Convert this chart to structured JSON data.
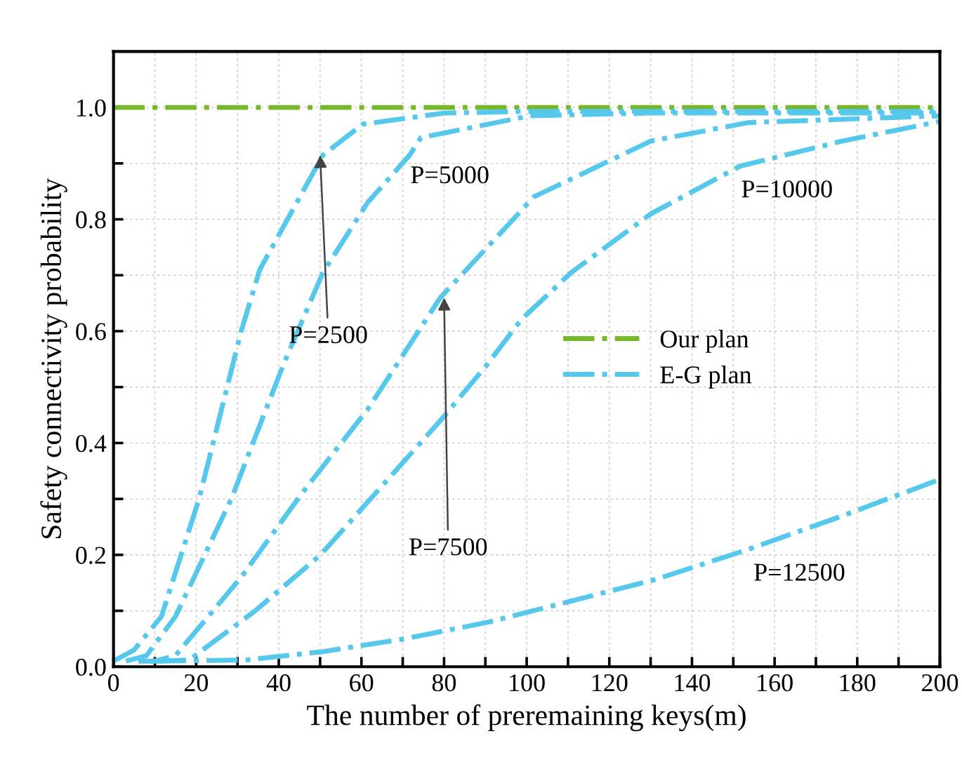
{
  "chart_data": {
    "type": "line",
    "xlabel": "The number of preremaining keys(m)",
    "ylabel": "Safety connectivity probability",
    "xlim": [
      0,
      200
    ],
    "xticks": [
      0,
      {
        "value": 10,
        "label": null
      },
      20,
      {
        "value": 30,
        "label": null
      },
      40,
      {
        "value": 50,
        "label": null
      },
      60,
      {
        "value": 70,
        "label": null
      },
      80,
      {
        "value": 90,
        "label": null
      },
      100,
      {
        "value": 110,
        "label": null
      },
      120,
      {
        "value": 130,
        "label": null
      },
      140,
      {
        "value": 150,
        "label": null
      },
      160,
      {
        "value": 170,
        "label": null
      },
      180,
      {
        "value": 190,
        "label": null
      },
      200
    ],
    "ylim": [
      0,
      1.1
    ],
    "yticks": [
      {
        "value": 0,
        "label": "0.0"
      },
      {
        "value": 0.1,
        "label": null
      },
      {
        "value": 0.2,
        "label": "0.2"
      },
      {
        "value": 0.3,
        "label": null
      },
      {
        "value": 0.4,
        "label": "0.4"
      },
      {
        "value": 0.5,
        "label": null
      },
      {
        "value": 0.6,
        "label": "0.6"
      },
      {
        "value": 0.7,
        "label": null
      },
      {
        "value": 0.8,
        "label": "0.8"
      },
      {
        "value": 0.9,
        "label": null
      },
      {
        "value": 1.0,
        "label": "1.0"
      }
    ],
    "grid": true,
    "legend": "right",
    "line_style": "dashdot",
    "marker": "none",
    "series": [
      {
        "name": "Our plan",
        "color": "#77b82a",
        "x": [
          0,
          200
        ],
        "values": [
          1.0,
          1.0
        ]
      },
      {
        "name": "E-G plan",
        "color": "#55c8ec",
        "x": [
          0,
          5,
          11.6,
          20.7,
          30.9,
          35.4,
          50.7,
          60.3,
          80,
          100,
          200
        ],
        "values": [
          0.01,
          0.03,
          0.09,
          0.3,
          0.6,
          0.71,
          0.915,
          0.97,
          0.99,
          0.993,
          0.993
        ]
      },
      {
        "color": "#55c8ec",
        "x": [
          3,
          8,
          15,
          28.5,
          41.1,
          50.7,
          61.5,
          71.7,
          74.4,
          100.7,
          130,
          200
        ],
        "values": [
          0.01,
          0.02,
          0.09,
          0.3,
          0.54,
          0.705,
          0.83,
          0.915,
          0.946,
          0.985,
          0.99,
          0.99
        ]
      },
      {
        "color": "#55c8ec",
        "x": [
          6,
          10,
          15,
          30.9,
          45.6,
          61.5,
          79.1,
          95.5,
          101.7,
          130.1,
          153.7,
          200
        ],
        "values": [
          0.01,
          0.01,
          0.02,
          0.16,
          0.31,
          0.46,
          0.66,
          0.79,
          0.84,
          0.94,
          0.973,
          0.985
        ]
      },
      {
        "color": "#55c8ec",
        "x": [
          10,
          18.3,
          34.3,
          50.1,
          79.1,
          90.4,
          98.6,
          110.8,
          130.1,
          151.6,
          176.5,
          200
        ],
        "values": [
          0.01,
          0.012,
          0.1,
          0.2,
          0.44,
          0.54,
          0.62,
          0.705,
          0.81,
          0.895,
          0.94,
          0.975
        ]
      },
      {
        "color": "#55c8ec",
        "x": [
          10,
          32,
          50.7,
          70.5,
          90.9,
          131.2,
          153.7,
          176.5,
          200
        ],
        "values": [
          0.01,
          0.012,
          0.027,
          0.05,
          0.08,
          0.156,
          0.21,
          0.27,
          0.335
        ]
      }
    ],
    "annotations": [
      {
        "text": "P=2500",
        "x": 50,
        "y": 0.915
      },
      "P=5000",
      {
        "text": "P=7500",
        "x": 80,
        "y": 0.66
      },
      "P=10000",
      "P=12500"
    ]
  }
}
